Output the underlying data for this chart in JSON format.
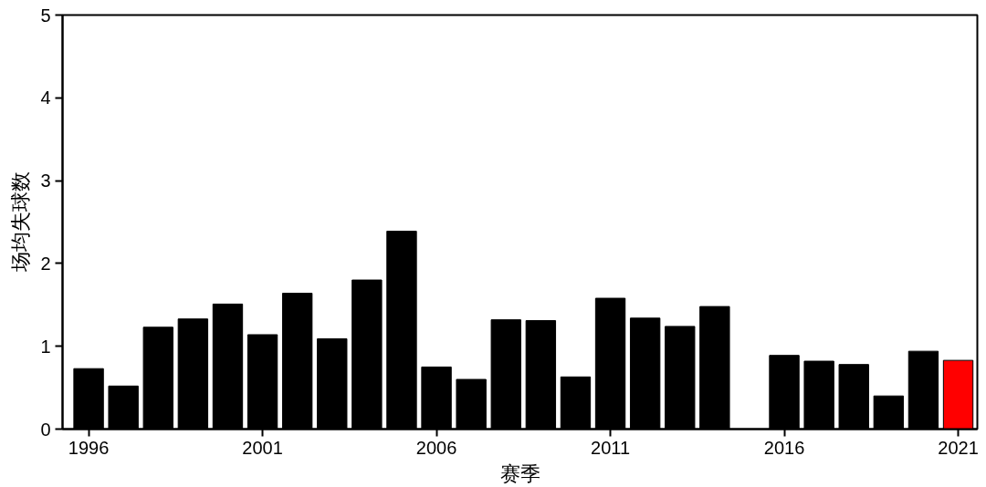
{
  "chart_data": {
    "type": "bar",
    "xlabel": "赛季",
    "ylabel": "场均失球数",
    "x": [
      1996,
      1997,
      1998,
      1999,
      2000,
      2001,
      2002,
      2003,
      2004,
      2005,
      2006,
      2007,
      2008,
      2009,
      2010,
      2011,
      2012,
      2013,
      2014,
      2015,
      2016,
      2017,
      2018,
      2019,
      2020,
      2021
    ],
    "values": [
      0.73,
      0.52,
      1.23,
      1.33,
      1.51,
      1.14,
      1.64,
      1.09,
      1.8,
      2.39,
      0.75,
      0.6,
      1.32,
      1.31,
      0.63,
      1.58,
      1.34,
      1.24,
      1.48,
      null,
      0.89,
      0.82,
      0.78,
      0.4,
      0.94,
      0.83
    ],
    "colors": [
      "#000000",
      "#000000",
      "#000000",
      "#000000",
      "#000000",
      "#000000",
      "#000000",
      "#000000",
      "#000000",
      "#000000",
      "#000000",
      "#000000",
      "#000000",
      "#000000",
      "#000000",
      "#000000",
      "#000000",
      "#000000",
      "#000000",
      "#000000",
      "#000000",
      "#000000",
      "#000000",
      "#000000",
      "#000000",
      "#ff0000"
    ],
    "xlim": [
      1995.25,
      2021.55
    ],
    "xticks": [
      1996,
      2001,
      2006,
      2011,
      2016,
      2021
    ],
    "ylim": [
      0,
      5
    ],
    "yticks": [
      0,
      1,
      2,
      3,
      4,
      5
    ],
    "grid": false
  }
}
